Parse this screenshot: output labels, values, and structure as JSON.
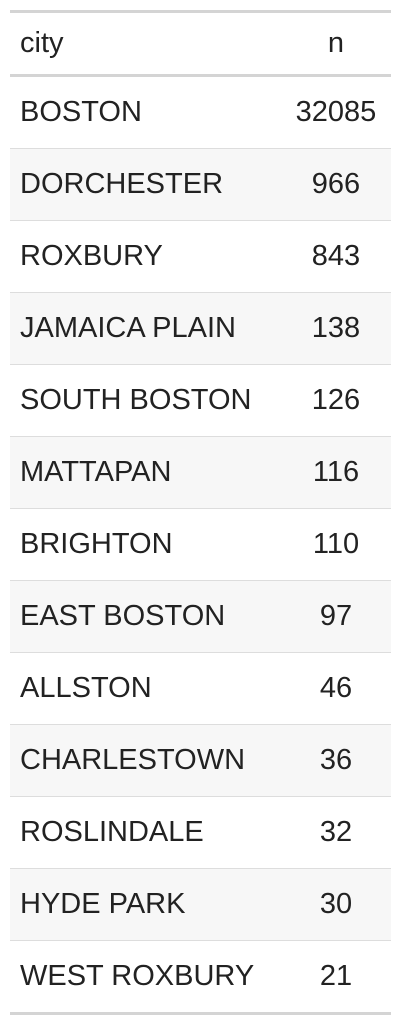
{
  "table": {
    "headers": {
      "city": "city",
      "n": "n"
    },
    "rows": [
      {
        "city": "BOSTON",
        "n": "32085"
      },
      {
        "city": "DORCHESTER",
        "n": "966"
      },
      {
        "city": "ROXBURY",
        "n": "843"
      },
      {
        "city": "JAMAICA PLAIN",
        "n": "138"
      },
      {
        "city": "SOUTH BOSTON",
        "n": "126"
      },
      {
        "city": "MATTAPAN",
        "n": "116"
      },
      {
        "city": "BRIGHTON",
        "n": "110"
      },
      {
        "city": "EAST BOSTON",
        "n": "97"
      },
      {
        "city": "ALLSTON",
        "n": "46"
      },
      {
        "city": "CHARLESTOWN",
        "n": "36"
      },
      {
        "city": "ROSLINDALE",
        "n": "32"
      },
      {
        "city": "HYDE PARK",
        "n": "30"
      },
      {
        "city": "WEST ROXBURY",
        "n": "21"
      }
    ]
  },
  "colors": {
    "rule": "#d4d4d4",
    "row_divider": "#dddddd",
    "striped_row": "#f7f7f7",
    "text": "#222222"
  }
}
